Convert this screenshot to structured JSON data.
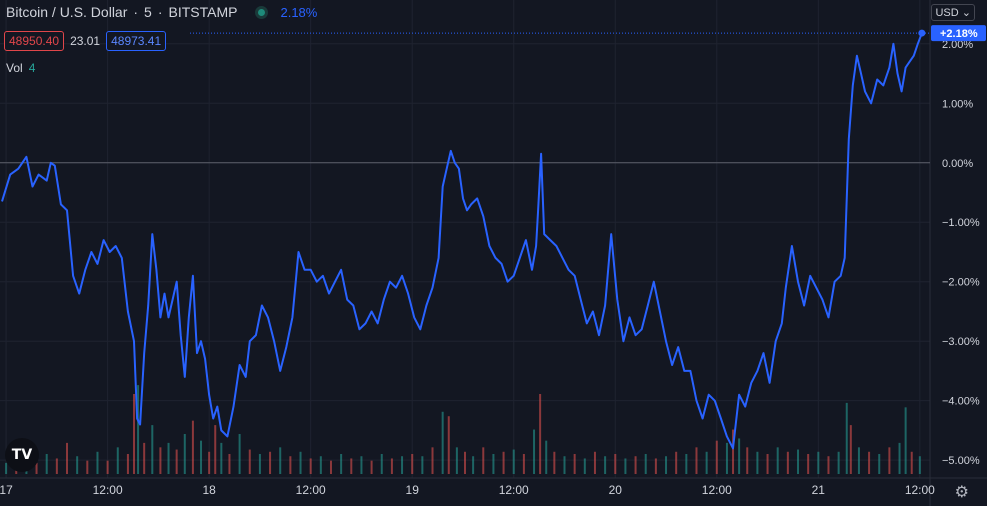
{
  "header": {
    "symbol": "Bitcoin / U.S. Dollar",
    "interval": "5",
    "exchange": "BITSTAMP",
    "change": "2.18%",
    "status_icon": "market-status-dot-icon"
  },
  "prices": {
    "bid": "48950.40",
    "spread": "23.01",
    "ask": "48973.41"
  },
  "volume": {
    "label": "Vol",
    "value": "4"
  },
  "currency": "USD",
  "last_badge": "+2.18%",
  "icons": {
    "logo": "tradingview-logo-icon",
    "settings": "gear-icon"
  },
  "colors": {
    "background": "#131722",
    "line": "#2962ff",
    "vol_up": "#26a69a",
    "vol_down": "#ef5350",
    "grid": "#1f2330",
    "zero_line": "#5d606b"
  },
  "chart_data": {
    "type": "line",
    "y_unit": "%",
    "ylim": [
      -5.3,
      2.4
    ],
    "grid": true,
    "x_ticks": [
      {
        "label": "17",
        "t": 0
      },
      {
        "label": "12:00",
        "t": 0.5
      },
      {
        "label": "18",
        "t": 1
      },
      {
        "label": "12:00",
        "t": 1.5
      },
      {
        "label": "19",
        "t": 2
      },
      {
        "label": "12:00",
        "t": 2.5
      },
      {
        "label": "20",
        "t": 3
      },
      {
        "label": "12:00",
        "t": 3.5
      },
      {
        "label": "21",
        "t": 4
      },
      {
        "label": "12:00",
        "t": 4.5
      }
    ],
    "y_ticks": [
      {
        "label": "2.00%",
        "v": 2
      },
      {
        "label": "1.00%",
        "v": 1
      },
      {
        "label": "0.00%",
        "v": 0
      },
      {
        "label": "−1.00%",
        "v": -1
      },
      {
        "label": "−2.00%",
        "v": -2
      },
      {
        "label": "−3.00%",
        "v": -3
      },
      {
        "label": "−4.00%",
        "v": -4
      },
      {
        "label": "−5.00%",
        "v": -5
      }
    ],
    "t_range": [
      -0.03,
      4.55
    ],
    "series": [
      {
        "values": [
          [
            -0.02,
            -0.65
          ],
          [
            0.02,
            -0.2
          ],
          [
            0.06,
            -0.1
          ],
          [
            0.1,
            0.1
          ],
          [
            0.13,
            -0.4
          ],
          [
            0.16,
            -0.2
          ],
          [
            0.2,
            -0.3
          ],
          [
            0.22,
            0.0
          ],
          [
            0.24,
            -0.05
          ],
          [
            0.27,
            -0.7
          ],
          [
            0.3,
            -0.8
          ],
          [
            0.33,
            -1.9
          ],
          [
            0.36,
            -2.2
          ],
          [
            0.39,
            -1.8
          ],
          [
            0.42,
            -1.5
          ],
          [
            0.45,
            -1.7
          ],
          [
            0.48,
            -1.3
          ],
          [
            0.51,
            -1.5
          ],
          [
            0.54,
            -1.4
          ],
          [
            0.57,
            -1.6
          ],
          [
            0.6,
            -2.5
          ],
          [
            0.63,
            -3.0
          ],
          [
            0.645,
            -4.3
          ],
          [
            0.66,
            -4.4
          ],
          [
            0.68,
            -3.2
          ],
          [
            0.7,
            -2.4
          ],
          [
            0.72,
            -1.2
          ],
          [
            0.74,
            -1.8
          ],
          [
            0.76,
            -2.6
          ],
          [
            0.78,
            -2.2
          ],
          [
            0.8,
            -2.6
          ],
          [
            0.82,
            -2.3
          ],
          [
            0.84,
            -2.0
          ],
          [
            0.86,
            -2.9
          ],
          [
            0.88,
            -3.6
          ],
          [
            0.9,
            -2.6
          ],
          [
            0.92,
            -1.9
          ],
          [
            0.94,
            -3.2
          ],
          [
            0.96,
            -3.0
          ],
          [
            0.98,
            -3.3
          ],
          [
            1.0,
            -3.9
          ],
          [
            1.02,
            -4.3
          ],
          [
            1.04,
            -4.1
          ],
          [
            1.06,
            -4.5
          ],
          [
            1.09,
            -4.6
          ],
          [
            1.12,
            -4.1
          ],
          [
            1.15,
            -3.4
          ],
          [
            1.18,
            -3.6
          ],
          [
            1.2,
            -3.0
          ],
          [
            1.23,
            -2.9
          ],
          [
            1.26,
            -2.4
          ],
          [
            1.29,
            -2.6
          ],
          [
            1.32,
            -3.0
          ],
          [
            1.35,
            -3.5
          ],
          [
            1.38,
            -3.1
          ],
          [
            1.41,
            -2.6
          ],
          [
            1.44,
            -1.5
          ],
          [
            1.47,
            -1.8
          ],
          [
            1.5,
            -1.8
          ],
          [
            1.53,
            -2.0
          ],
          [
            1.56,
            -1.9
          ],
          [
            1.59,
            -2.2
          ],
          [
            1.62,
            -2.0
          ],
          [
            1.65,
            -1.8
          ],
          [
            1.68,
            -2.3
          ],
          [
            1.71,
            -2.4
          ],
          [
            1.74,
            -2.8
          ],
          [
            1.77,
            -2.7
          ],
          [
            1.8,
            -2.5
          ],
          [
            1.83,
            -2.7
          ],
          [
            1.86,
            -2.3
          ],
          [
            1.89,
            -2.0
          ],
          [
            1.92,
            -2.1
          ],
          [
            1.95,
            -1.9
          ],
          [
            1.98,
            -2.2
          ],
          [
            2.01,
            -2.6
          ],
          [
            2.04,
            -2.8
          ],
          [
            2.07,
            -2.4
          ],
          [
            2.1,
            -2.1
          ],
          [
            2.13,
            -1.6
          ],
          [
            2.15,
            -0.4
          ],
          [
            2.17,
            -0.1
          ],
          [
            2.19,
            0.2
          ],
          [
            2.21,
            0.0
          ],
          [
            2.23,
            -0.1
          ],
          [
            2.25,
            -0.6
          ],
          [
            2.27,
            -0.8
          ],
          [
            2.29,
            -0.7
          ],
          [
            2.32,
            -0.6
          ],
          [
            2.35,
            -0.9
          ],
          [
            2.38,
            -1.4
          ],
          [
            2.41,
            -1.6
          ],
          [
            2.44,
            -1.7
          ],
          [
            2.47,
            -2.0
          ],
          [
            2.5,
            -1.9
          ],
          [
            2.53,
            -1.6
          ],
          [
            2.56,
            -1.3
          ],
          [
            2.59,
            -1.8
          ],
          [
            2.61,
            -1.4
          ],
          [
            2.62,
            -0.8
          ],
          [
            2.635,
            0.15
          ],
          [
            2.65,
            -1.2
          ],
          [
            2.68,
            -1.3
          ],
          [
            2.71,
            -1.4
          ],
          [
            2.74,
            -1.6
          ],
          [
            2.77,
            -1.8
          ],
          [
            2.8,
            -1.9
          ],
          [
            2.83,
            -2.3
          ],
          [
            2.86,
            -2.7
          ],
          [
            2.89,
            -2.5
          ],
          [
            2.92,
            -2.9
          ],
          [
            2.95,
            -2.4
          ],
          [
            2.98,
            -1.2
          ],
          [
            3.01,
            -2.3
          ],
          [
            3.04,
            -3.0
          ],
          [
            3.07,
            -2.6
          ],
          [
            3.1,
            -2.9
          ],
          [
            3.13,
            -2.8
          ],
          [
            3.16,
            -2.4
          ],
          [
            3.19,
            -2.0
          ],
          [
            3.22,
            -2.5
          ],
          [
            3.25,
            -3.0
          ],
          [
            3.28,
            -3.4
          ],
          [
            3.31,
            -3.1
          ],
          [
            3.34,
            -3.5
          ],
          [
            3.37,
            -3.5
          ],
          [
            3.4,
            -4.0
          ],
          [
            3.43,
            -4.3
          ],
          [
            3.46,
            -3.9
          ],
          [
            3.49,
            -4.0
          ],
          [
            3.52,
            -4.3
          ],
          [
            3.55,
            -4.6
          ],
          [
            3.58,
            -4.8
          ],
          [
            3.61,
            -3.9
          ],
          [
            3.64,
            -4.1
          ],
          [
            3.67,
            -3.7
          ],
          [
            3.7,
            -3.5
          ],
          [
            3.73,
            -3.2
          ],
          [
            3.76,
            -3.7
          ],
          [
            3.79,
            -3.0
          ],
          [
            3.82,
            -2.7
          ],
          [
            3.84,
            -2.1
          ],
          [
            3.87,
            -1.4
          ],
          [
            3.9,
            -2.0
          ],
          [
            3.93,
            -2.4
          ],
          [
            3.96,
            -1.9
          ],
          [
            3.99,
            -2.1
          ],
          [
            4.02,
            -2.3
          ],
          [
            4.05,
            -2.6
          ],
          [
            4.08,
            -2.0
          ],
          [
            4.11,
            -1.9
          ],
          [
            4.13,
            -1.6
          ],
          [
            4.15,
            0.4
          ],
          [
            4.17,
            1.3
          ],
          [
            4.19,
            1.8
          ],
          [
            4.21,
            1.5
          ],
          [
            4.23,
            1.2
          ],
          [
            4.26,
            1.0
          ],
          [
            4.29,
            1.4
          ],
          [
            4.32,
            1.3
          ],
          [
            4.35,
            1.6
          ],
          [
            4.37,
            2.0
          ],
          [
            4.39,
            1.5
          ],
          [
            4.41,
            1.2
          ],
          [
            4.43,
            1.6
          ],
          [
            4.45,
            1.7
          ],
          [
            4.47,
            1.8
          ],
          [
            4.49,
            2.0
          ],
          [
            4.51,
            2.18
          ]
        ]
      }
    ],
    "volume": {
      "values": [
        [
          0.0,
          5,
          1
        ],
        [
          0.05,
          4,
          0
        ],
        [
          0.1,
          6,
          1
        ],
        [
          0.15,
          5,
          0
        ],
        [
          0.2,
          9,
          1
        ],
        [
          0.25,
          7,
          0
        ],
        [
          0.3,
          14,
          0
        ],
        [
          0.35,
          8,
          1
        ],
        [
          0.4,
          6,
          0
        ],
        [
          0.45,
          10,
          1
        ],
        [
          0.5,
          6,
          0
        ],
        [
          0.55,
          12,
          1
        ],
        [
          0.6,
          9,
          0
        ],
        [
          0.63,
          36,
          0
        ],
        [
          0.65,
          40,
          1
        ],
        [
          0.68,
          14,
          0
        ],
        [
          0.72,
          22,
          1
        ],
        [
          0.76,
          12,
          0
        ],
        [
          0.8,
          14,
          1
        ],
        [
          0.84,
          11,
          0
        ],
        [
          0.88,
          18,
          1
        ],
        [
          0.92,
          24,
          0
        ],
        [
          0.96,
          15,
          1
        ],
        [
          1.0,
          10,
          0
        ],
        [
          1.03,
          22,
          0
        ],
        [
          1.06,
          14,
          1
        ],
        [
          1.1,
          9,
          0
        ],
        [
          1.15,
          18,
          1
        ],
        [
          1.2,
          11,
          0
        ],
        [
          1.25,
          9,
          1
        ],
        [
          1.3,
          10,
          0
        ],
        [
          1.35,
          12,
          1
        ],
        [
          1.4,
          8,
          0
        ],
        [
          1.45,
          10,
          1
        ],
        [
          1.5,
          7,
          0
        ],
        [
          1.55,
          8,
          1
        ],
        [
          1.6,
          6,
          0
        ],
        [
          1.65,
          9,
          1
        ],
        [
          1.7,
          7,
          0
        ],
        [
          1.75,
          8,
          1
        ],
        [
          1.8,
          6,
          0
        ],
        [
          1.85,
          9,
          1
        ],
        [
          1.9,
          7,
          0
        ],
        [
          1.95,
          8,
          1
        ],
        [
          2.0,
          9,
          0
        ],
        [
          2.05,
          8,
          1
        ],
        [
          2.1,
          12,
          0
        ],
        [
          2.15,
          28,
          1
        ],
        [
          2.18,
          26,
          0
        ],
        [
          2.22,
          12,
          1
        ],
        [
          2.26,
          10,
          0
        ],
        [
          2.3,
          8,
          1
        ],
        [
          2.35,
          12,
          0
        ],
        [
          2.4,
          9,
          1
        ],
        [
          2.45,
          10,
          0
        ],
        [
          2.5,
          11,
          1
        ],
        [
          2.55,
          9,
          0
        ],
        [
          2.6,
          20,
          1
        ],
        [
          2.63,
          36,
          0
        ],
        [
          2.66,
          15,
          1
        ],
        [
          2.7,
          10,
          0
        ],
        [
          2.75,
          8,
          1
        ],
        [
          2.8,
          9,
          0
        ],
        [
          2.85,
          7,
          1
        ],
        [
          2.9,
          10,
          0
        ],
        [
          2.95,
          8,
          1
        ],
        [
          3.0,
          9,
          0
        ],
        [
          3.05,
          7,
          1
        ],
        [
          3.1,
          8,
          0
        ],
        [
          3.15,
          9,
          1
        ],
        [
          3.2,
          7,
          0
        ],
        [
          3.25,
          8,
          1
        ],
        [
          3.3,
          10,
          0
        ],
        [
          3.35,
          9,
          1
        ],
        [
          3.4,
          12,
          0
        ],
        [
          3.45,
          10,
          1
        ],
        [
          3.5,
          15,
          0
        ],
        [
          3.55,
          14,
          1
        ],
        [
          3.58,
          20,
          0
        ],
        [
          3.61,
          16,
          1
        ],
        [
          3.65,
          12,
          0
        ],
        [
          3.7,
          10,
          1
        ],
        [
          3.75,
          9,
          0
        ],
        [
          3.8,
          12,
          1
        ],
        [
          3.85,
          10,
          0
        ],
        [
          3.9,
          11,
          1
        ],
        [
          3.95,
          9,
          0
        ],
        [
          4.0,
          10,
          1
        ],
        [
          4.05,
          8,
          0
        ],
        [
          4.1,
          10,
          1
        ],
        [
          4.14,
          32,
          1
        ],
        [
          4.16,
          22,
          0
        ],
        [
          4.2,
          12,
          1
        ],
        [
          4.25,
          10,
          0
        ],
        [
          4.3,
          9,
          1
        ],
        [
          4.35,
          12,
          0
        ],
        [
          4.4,
          14,
          1
        ],
        [
          4.43,
          30,
          1
        ],
        [
          4.46,
          10,
          0
        ],
        [
          4.5,
          8,
          1
        ]
      ],
      "max": 45
    }
  }
}
